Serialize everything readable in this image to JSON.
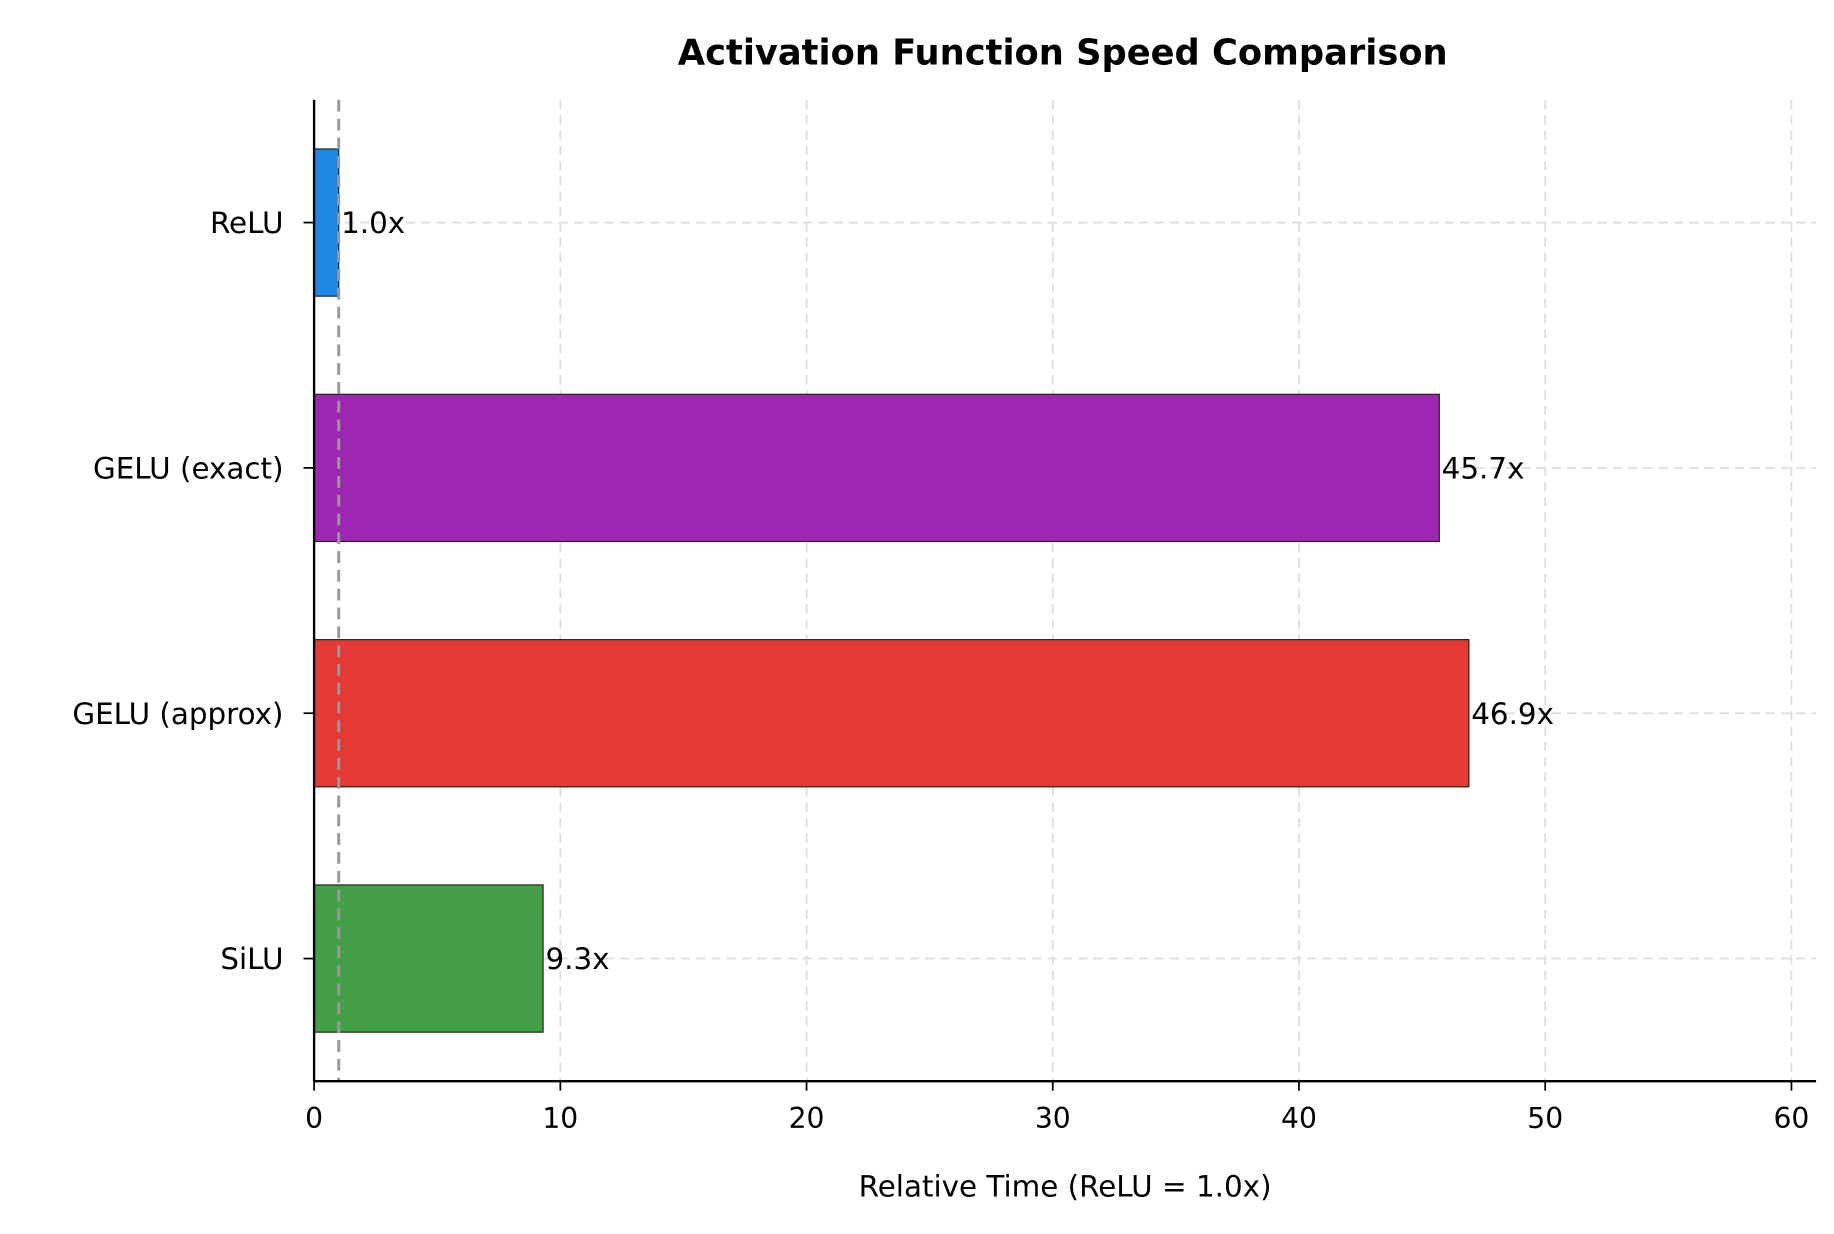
{
  "chart_data": {
    "type": "bar",
    "orientation": "horizontal",
    "title": "Activation Function Speed Comparison",
    "xlabel": "Relative Time (ReLU = 1.0x)",
    "ylabel": "",
    "categories": [
      "ReLU",
      "GELU (exact)",
      "GELU (approx)",
      "SiLU"
    ],
    "values": [
      1.0,
      45.7,
      46.9,
      9.3
    ],
    "data_labels": [
      "1.0x",
      "45.7x",
      "46.9x",
      "9.3x"
    ],
    "colors": [
      "#1E88E5",
      "#9C27B0",
      "#E53935",
      "#43A047"
    ],
    "xlim": [
      0,
      61
    ],
    "xticks": [
      0,
      10,
      20,
      30,
      40,
      50,
      60
    ],
    "xtick_labels": [
      "0",
      "10",
      "20",
      "30",
      "40",
      "50",
      "60"
    ],
    "grid": true,
    "reference_line": {
      "x": 1.0,
      "style": "dashed",
      "color": "#999999"
    }
  }
}
